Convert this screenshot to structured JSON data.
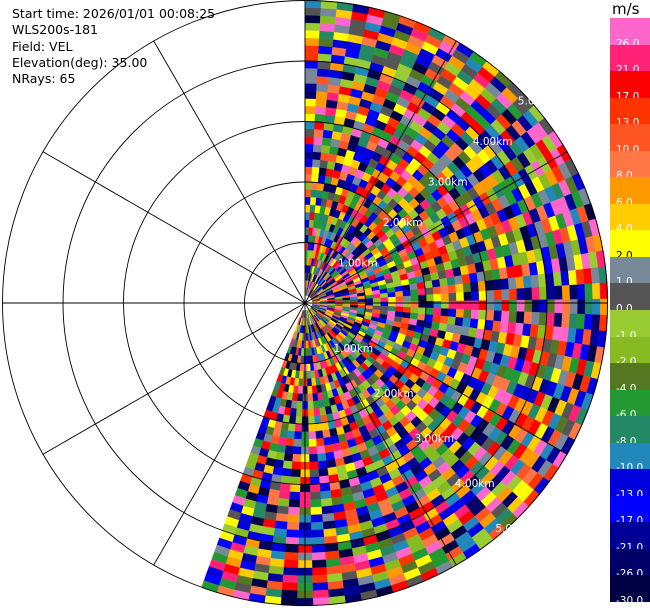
{
  "info": {
    "start_time": "Start time: 2026/01/01 00:08:25",
    "instrument": "WLS200s-181",
    "field": "Field: VEL",
    "elevation": "Elevation(deg): 35.00",
    "nrays": "NRays: 65"
  },
  "colorbar": {
    "unit": "m/s",
    "bins": [
      {
        "label": "26.0",
        "color": "#ff66cc"
      },
      {
        "label": "21.0",
        "color": "#ff2277"
      },
      {
        "label": "17.0",
        "color": "#ff0000"
      },
      {
        "label": "13.0",
        "color": "#ff3300"
      },
      {
        "label": "10.0",
        "color": "#ff5522"
      },
      {
        "label": "8.0",
        "color": "#ff7744"
      },
      {
        "label": "6.0",
        "color": "#ff9900"
      },
      {
        "label": "4.0",
        "color": "#ffcc00"
      },
      {
        "label": "2.0",
        "color": "#ffff00"
      },
      {
        "label": "1.0",
        "color": "#778899"
      },
      {
        "label": "0.0",
        "color": "#555555"
      },
      {
        "label": "-1.0",
        "color": "#99cc33"
      },
      {
        "label": "-2.0",
        "color": "#88bb22"
      },
      {
        "label": "-4.0",
        "color": "#557722"
      },
      {
        "label": "-6.0",
        "color": "#229933"
      },
      {
        "label": "-8.0",
        "color": "#228866"
      },
      {
        "label": "-10.0",
        "color": "#2288bb"
      },
      {
        "label": "-13.0",
        "color": "#0000dd"
      },
      {
        "label": "-17.0",
        "color": "#0000ff"
      },
      {
        "label": "-21.0",
        "color": "#000099"
      },
      {
        "label": "-26.0",
        "color": "#000066"
      },
      {
        "label": "-30.0",
        "color": "#000044"
      }
    ]
  },
  "chart_data": {
    "type": "heatmap",
    "subtype": "ppi-polar",
    "field": "VEL",
    "units": "m/s",
    "azimuth_range_deg": [
      0,
      200
    ],
    "nrays": 65,
    "range_rings_km": [
      "1.00km",
      "2.00km",
      "3.00km",
      "4.00km",
      "5.00km"
    ],
    "radial_lines_deg": [
      0,
      30,
      60,
      90,
      120,
      150,
      180,
      210,
      240,
      270,
      300,
      330
    ],
    "grid": true,
    "vmin": -30.0,
    "vmax": 26.0
  }
}
